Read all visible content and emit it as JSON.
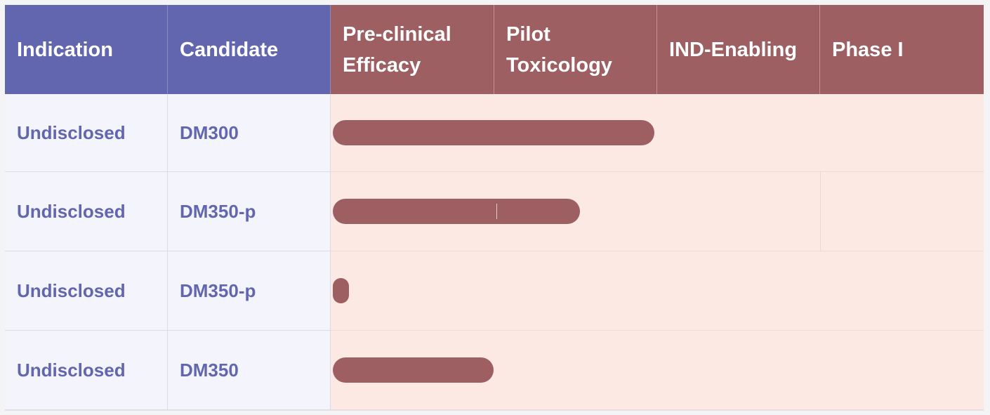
{
  "header": {
    "columns": [
      {
        "line1": "Indication",
        "line2": ""
      },
      {
        "line1": "Candidate",
        "line2": ""
      },
      {
        "line1": "Pre-clinical",
        "line2": "Efficacy"
      },
      {
        "line1": "Pilot",
        "line2": "Toxicology"
      },
      {
        "line1": "IND-Enabling",
        "line2": ""
      },
      {
        "line1": "Phase I",
        "line2": ""
      }
    ]
  },
  "rows": [
    {
      "indication": "Undisclosed",
      "candidate": "DM300",
      "progress_fraction": 0.493
    },
    {
      "indication": "Undisclosed",
      "candidate": "DM350-p",
      "progress_fraction": 0.378
    },
    {
      "indication": "Undisclosed",
      "candidate": "DM350-p",
      "progress_fraction": 0.025
    },
    {
      "indication": "Undisclosed",
      "candidate": "DM350",
      "progress_fraction": 0.246
    }
  ],
  "colors": {
    "header_blue": "#6266ae",
    "header_red": "#9e5f62",
    "label_text": "#6266ae",
    "label_bg": "#f4f4fd",
    "track_bg": "#fde9e3",
    "bar": "#9e5f62"
  }
}
